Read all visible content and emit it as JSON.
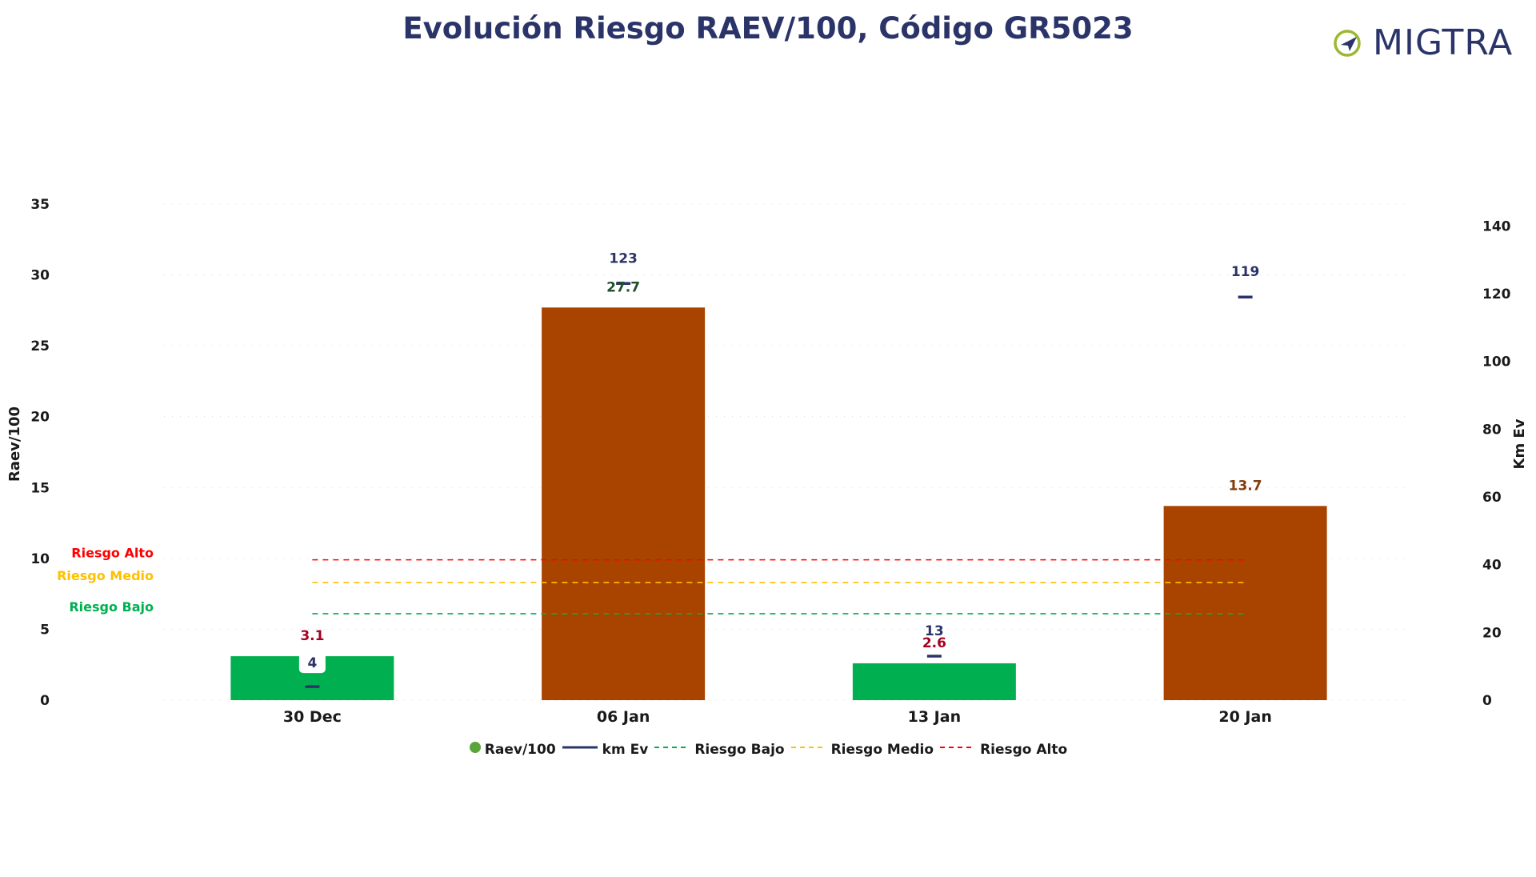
{
  "title": "Evolución Riesgo RAEV/100, Código GR5023",
  "logo_text": "MIGTRA",
  "colors": {
    "title": "#2b3469",
    "bar_low": "#00b050",
    "bar_high": "#a84300",
    "km_line": "#2b3469",
    "riesgo_bajo": "#00b050",
    "riesgo_medio": "#ffc000",
    "riesgo_alto": "#ff0000"
  },
  "chart_data": {
    "type": "bar",
    "categories": [
      "30 Dec",
      "06 Jan",
      "13 Jan",
      "20 Jan"
    ],
    "series": [
      {
        "name": "Raev/100",
        "type": "bar",
        "axis": "left",
        "values": [
          3.1,
          27.7,
          2.6,
          13.7
        ],
        "labels": [
          "3.1",
          "27.7",
          "2.6",
          "13.7"
        ]
      },
      {
        "name": "km Ev",
        "type": "marker",
        "axis": "right",
        "values": [
          4,
          123,
          13,
          119
        ],
        "labels": [
          "4",
          "123",
          "13",
          "119"
        ]
      }
    ],
    "thresholds": [
      {
        "name": "Riesgo Bajo",
        "label": "Riesgo Bajo",
        "value": 6.1,
        "color": "#00b050"
      },
      {
        "name": "Riesgo Medio",
        "label": "Riesgo Medio",
        "value": 8.3,
        "color": "#ffc000"
      },
      {
        "name": "Riesgo Alto",
        "label": "Riesgo Alto",
        "value": 9.9,
        "color": "#ff0000"
      }
    ],
    "ylabel": "Raev/100",
    "y2label": "Km Ev",
    "ylim": [
      0,
      35
    ],
    "yticks": [
      "0",
      "5",
      "10",
      "15",
      "20",
      "25",
      "30",
      "35"
    ],
    "y2lim": [
      0,
      150
    ],
    "y2ticks": [
      "0",
      "20",
      "40",
      "60",
      "80",
      "100",
      "120",
      "140"
    ],
    "legend": [
      "Raev/100",
      "km Ev",
      "Riesgo Bajo",
      "Riesgo Medio",
      "Riesgo Alto"
    ],
    "legend_position": "bottom",
    "grid": true
  }
}
